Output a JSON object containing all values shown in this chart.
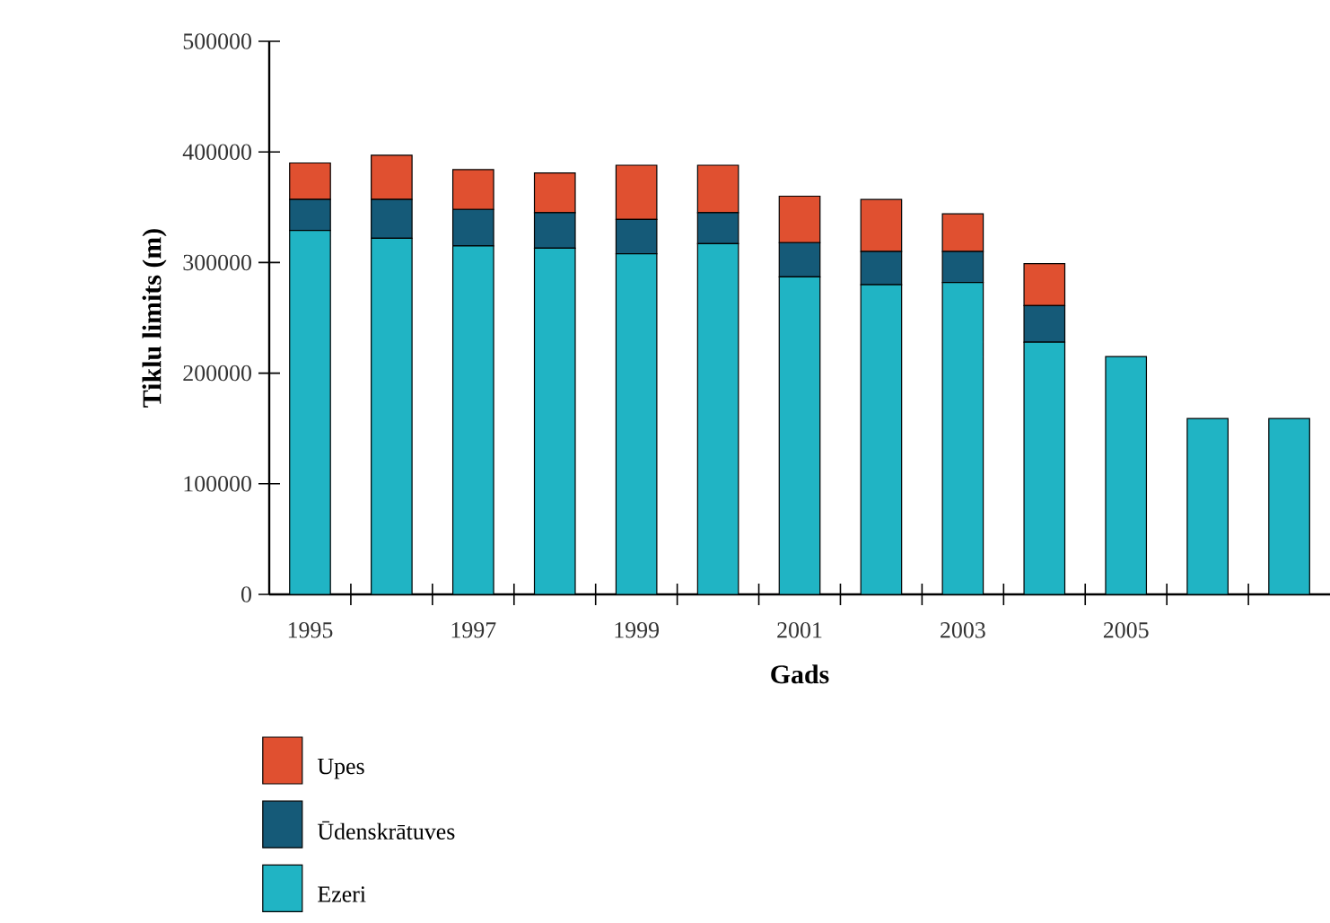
{
  "chart_data": {
    "type": "bar",
    "stacked": true,
    "xlabel": "Gads",
    "ylabel": "Tiklu limits   (m)",
    "categories": [
      "1995",
      null,
      "1997",
      null,
      "1999",
      null,
      "2001",
      null,
      "2003",
      null,
      "2005",
      null,
      null
    ],
    "series": [
      {
        "name": "Ezeri",
        "color": "#20b4c4",
        "values": [
          329000,
          322000,
          315000,
          313000,
          308000,
          317000,
          287000,
          280000,
          282000,
          228000,
          215000,
          159000,
          159000
        ]
      },
      {
        "name": "Ūdenskrātuves",
        "color": "#155a78",
        "values": [
          28000,
          35000,
          33000,
          32000,
          31000,
          28000,
          31000,
          30000,
          28000,
          33000,
          null,
          null,
          null
        ]
      },
      {
        "name": "Upes",
        "color": "#e05030",
        "values": [
          33000,
          40000,
          36000,
          36000,
          49000,
          43000,
          42000,
          47000,
          34000,
          38000,
          null,
          null,
          null
        ]
      }
    ],
    "ylim": [
      0,
      500000
    ],
    "yticks": [
      0,
      100000,
      200000,
      300000,
      400000,
      500000
    ],
    "legend": "bottom left",
    "grid": false
  }
}
